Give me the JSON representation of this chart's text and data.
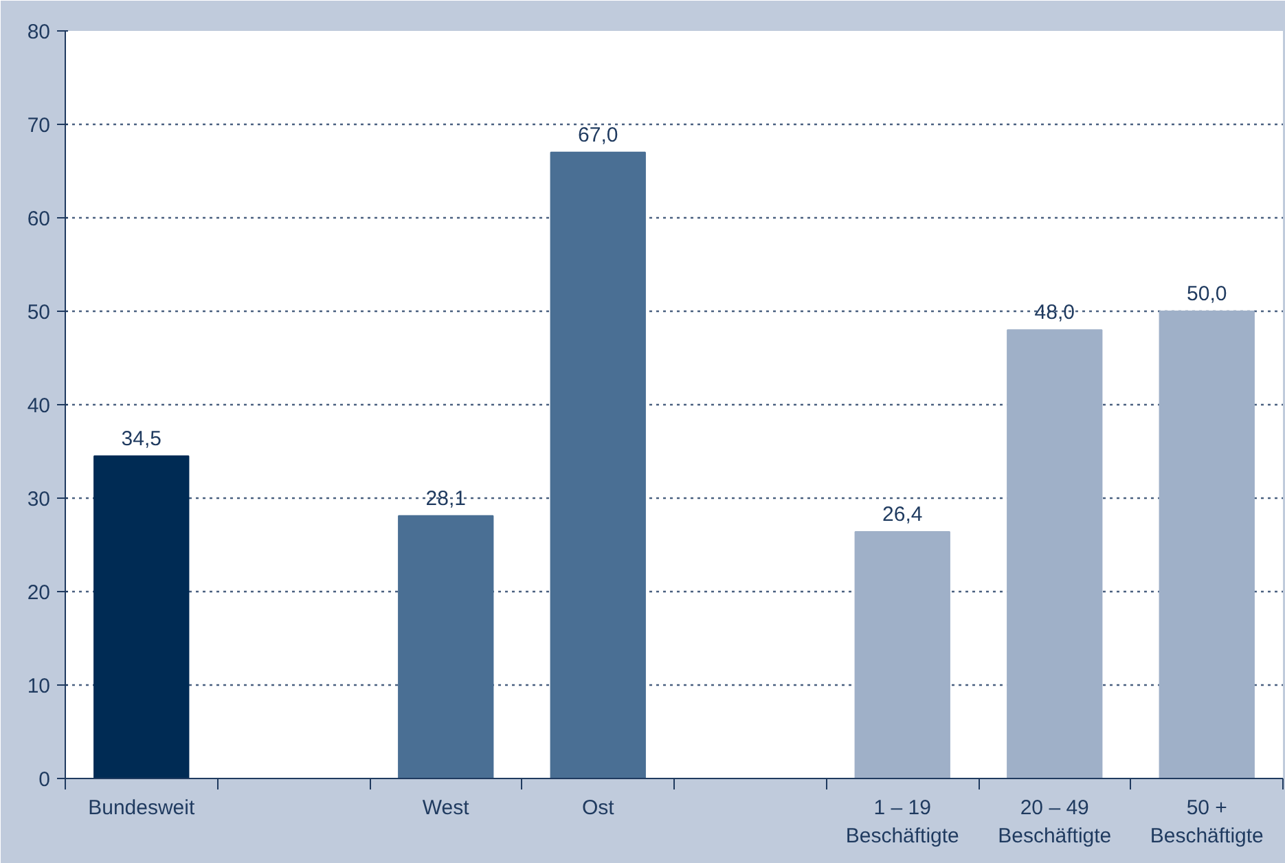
{
  "chart_data": {
    "type": "bar",
    "categories": [
      "Bundesweit",
      null,
      "West",
      "Ost",
      null,
      "1 – 19\nBeschäftigte",
      "20 – 49\nBeschäftigte",
      "50 +\nBeschäftigte"
    ],
    "values": [
      34.5,
      null,
      28.1,
      67.0,
      null,
      26.4,
      48.0,
      50.0
    ],
    "value_labels": [
      "34,5",
      null,
      "28,1",
      "67,0",
      null,
      "26,4",
      "48,0",
      "50,0"
    ],
    "colors": [
      "#002b54",
      "#4a6f94",
      "#4a6f94",
      "#4a6f94",
      "#9fb0c8",
      "#9fb0c8",
      "#9fb0c8",
      "#9fb0c8"
    ],
    "ylim": [
      0,
      80
    ],
    "yticks": [
      0,
      10,
      20,
      30,
      40,
      50,
      60,
      70,
      80
    ],
    "grid": "y"
  }
}
